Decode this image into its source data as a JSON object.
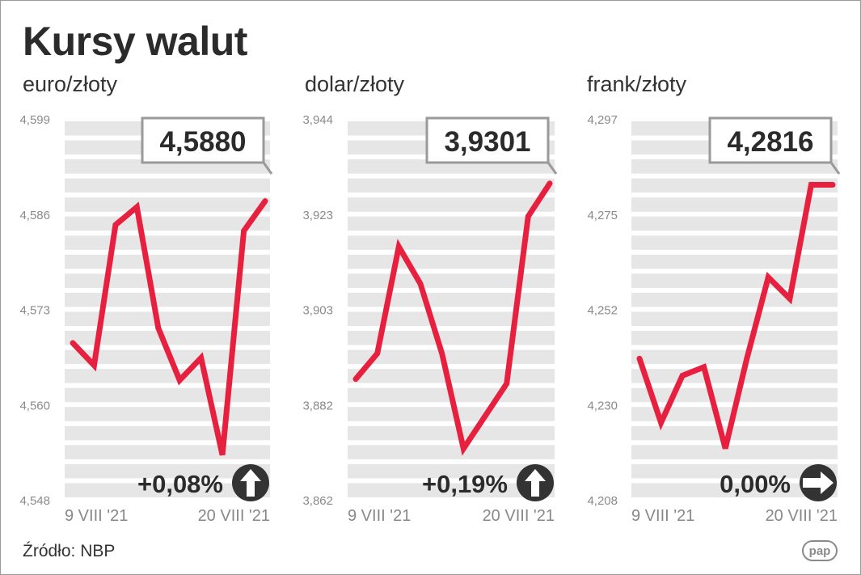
{
  "header": {
    "title": "Kursy walut"
  },
  "footer": {
    "source": "Źródło: NBP",
    "logo_text": "pap"
  },
  "colors": {
    "line": "#e8203f",
    "band": "#e6e6e6",
    "text": "#2b2b2b",
    "axis_text": "#8a8a8a"
  },
  "chart_data": [
    {
      "type": "line",
      "subtitle": "euro/złoty",
      "yticks": [
        "4,599",
        "4,586",
        "4,573",
        "4,560",
        "4,548"
      ],
      "ylim": [
        4.548,
        4.599
      ],
      "xticks": [
        "9 VIII '21",
        "20 VIII '21"
      ],
      "x": [
        "2021-08-09",
        "2021-08-10",
        "2021-08-11",
        "2021-08-12",
        "2021-08-13",
        "2021-08-16",
        "2021-08-17",
        "2021-08-18",
        "2021-08-19",
        "2021-08-20"
      ],
      "values": [
        4.569,
        4.566,
        4.5848,
        4.5872,
        4.571,
        4.564,
        4.567,
        4.554,
        4.584,
        4.588
      ],
      "latest": "4,5880",
      "change": "+0,08%",
      "trend": "up-arrow-icon"
    },
    {
      "type": "line",
      "subtitle": "dolar/złoty",
      "yticks": [
        "3,944",
        "3,923",
        "3,903",
        "3,882",
        "3,862"
      ],
      "ylim": [
        3.862,
        3.944
      ],
      "xticks": [
        "9 VIII '21",
        "20 VIII '21"
      ],
      "x": [
        "2021-08-09",
        "2021-08-10",
        "2021-08-11",
        "2021-08-12",
        "2021-08-13",
        "2021-08-16",
        "2021-08-17",
        "2021-08-18",
        "2021-08-19",
        "2021-08-20"
      ],
      "values": [
        3.888,
        3.8935,
        3.9165,
        3.9085,
        3.8935,
        3.873,
        3.88,
        3.887,
        3.923,
        3.9301
      ],
      "latest": "3,9301",
      "change": "+0,19%",
      "trend": "up-arrow-icon"
    },
    {
      "type": "line",
      "subtitle": "frank/złoty",
      "yticks": [
        "4,297",
        "4,275",
        "4,252",
        "4,230",
        "4,208"
      ],
      "ylim": [
        4.208,
        4.297
      ],
      "xticks": [
        "9 VIII '21",
        "20 VIII '21"
      ],
      "x": [
        "2021-08-09",
        "2021-08-10",
        "2021-08-11",
        "2021-08-12",
        "2021-08-13",
        "2021-08-16",
        "2021-08-17",
        "2021-08-18",
        "2021-08-19",
        "2021-08-20"
      ],
      "values": [
        4.241,
        4.226,
        4.237,
        4.239,
        4.22,
        4.241,
        4.26,
        4.255,
        4.2816,
        4.2816
      ],
      "latest": "4,2816",
      "change": "0,00%",
      "trend": "right-arrow-icon"
    }
  ]
}
